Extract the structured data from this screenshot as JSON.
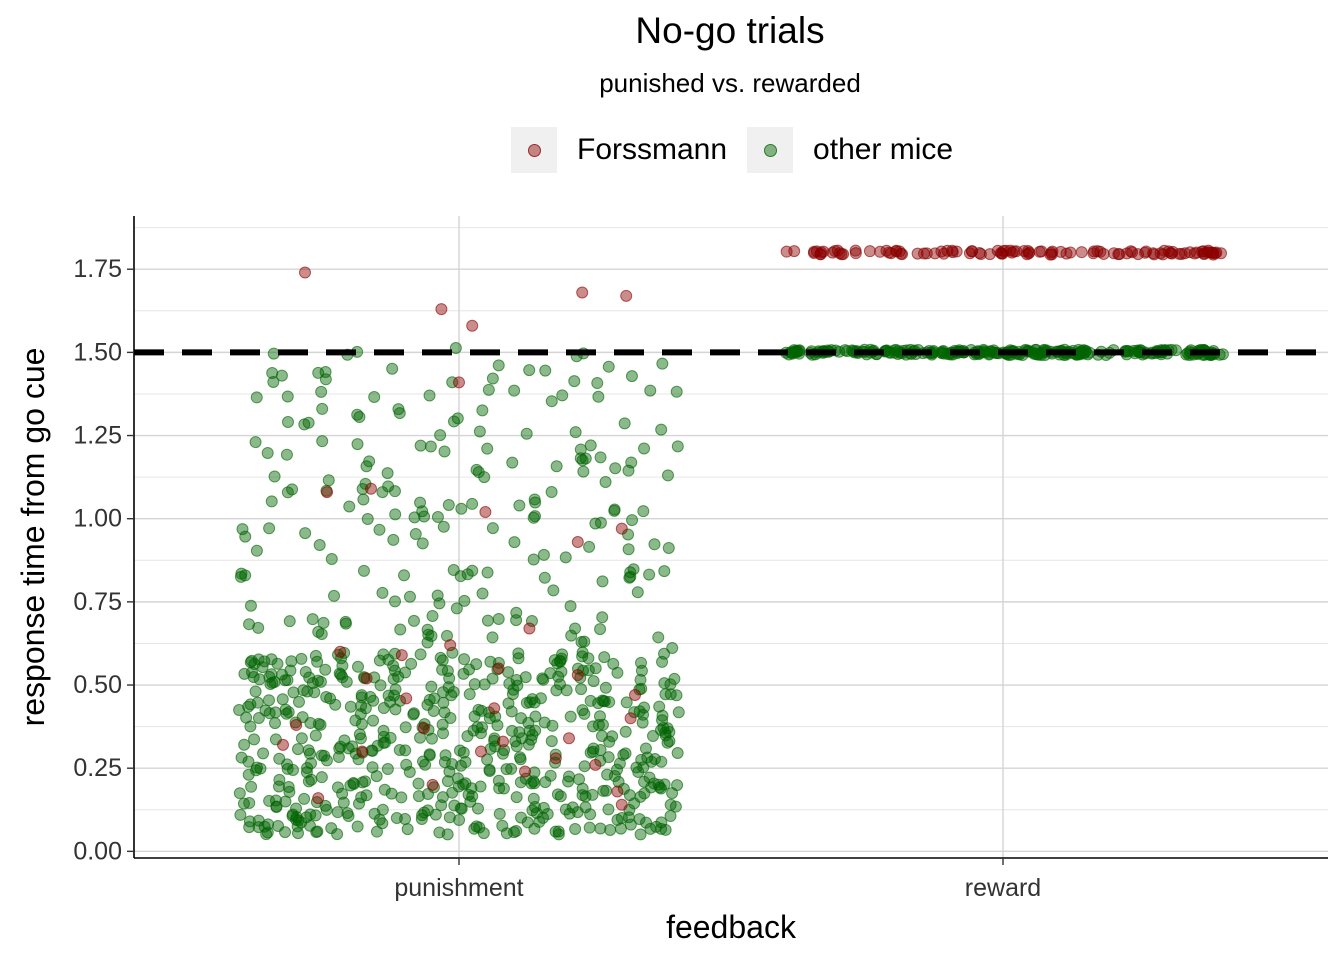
{
  "chart_data": {
    "type": "scatter",
    "title": "No-go trials",
    "subtitle": "punished vs. rewarded",
    "xlabel": "feedback",
    "ylabel": "response time from go cue",
    "categories": [
      "punishment",
      "reward"
    ],
    "ylim": [
      -0.02,
      1.91
    ],
    "yticks": [
      "0.00",
      "0.25",
      "0.50",
      "0.75",
      "1.00",
      "1.25",
      "1.50",
      "1.75"
    ],
    "reference_line": {
      "y": 1.5,
      "style": "dashed",
      "color": "#000000"
    },
    "grid": true,
    "legend_position": "top",
    "series": [
      {
        "name": "Forssmann",
        "color": "#8b0000",
        "points": [
          {
            "x": "punishment",
            "y": 1.74,
            "jitter": -0.35
          },
          {
            "x": "punishment",
            "y": 1.63,
            "jitter": -0.04
          },
          {
            "x": "punishment",
            "y": 1.58,
            "jitter": 0.03
          },
          {
            "x": "punishment",
            "y": 1.68,
            "jitter": 0.28
          },
          {
            "x": "punishment",
            "y": 1.67,
            "jitter": 0.38
          },
          {
            "x": "punishment",
            "y": 1.41,
            "jitter": 0.0
          },
          {
            "x": "punishment",
            "y": 1.08,
            "jitter": -0.3
          },
          {
            "x": "punishment",
            "y": 1.09,
            "jitter": -0.2
          },
          {
            "x": "punishment",
            "y": 1.02,
            "jitter": 0.06
          },
          {
            "x": "punishment",
            "y": 0.97,
            "jitter": 0.37
          },
          {
            "x": "punishment",
            "y": 0.93,
            "jitter": 0.27
          },
          {
            "x": "punishment",
            "y": 0.67,
            "jitter": 0.16
          },
          {
            "x": "punishment",
            "y": 0.62,
            "jitter": -0.02
          },
          {
            "x": "punishment",
            "y": 0.6,
            "jitter": -0.27
          },
          {
            "x": "punishment",
            "y": 0.59,
            "jitter": -0.13
          },
          {
            "x": "punishment",
            "y": 0.55,
            "jitter": 0.09
          },
          {
            "x": "punishment",
            "y": 0.53,
            "jitter": 0.27
          },
          {
            "x": "punishment",
            "y": 0.47,
            "jitter": 0.4
          },
          {
            "x": "punishment",
            "y": 0.46,
            "jitter": -0.12
          },
          {
            "x": "punishment",
            "y": 0.43,
            "jitter": 0.08
          },
          {
            "x": "punishment",
            "y": 0.4,
            "jitter": 0.39
          },
          {
            "x": "punishment",
            "y": 0.38,
            "jitter": -0.37
          },
          {
            "x": "punishment",
            "y": 0.37,
            "jitter": -0.08
          },
          {
            "x": "punishment",
            "y": 0.34,
            "jitter": 0.25
          },
          {
            "x": "punishment",
            "y": 0.32,
            "jitter": -0.4
          },
          {
            "x": "punishment",
            "y": 0.3,
            "jitter": 0.05
          },
          {
            "x": "punishment",
            "y": 0.3,
            "jitter": -0.22
          },
          {
            "x": "punishment",
            "y": 0.26,
            "jitter": 0.31
          },
          {
            "x": "punishment",
            "y": 0.24,
            "jitter": 0.15
          },
          {
            "x": "punishment",
            "y": 0.2,
            "jitter": -0.06
          },
          {
            "x": "punishment",
            "y": 0.18,
            "jitter": 0.36
          },
          {
            "x": "punishment",
            "y": 0.16,
            "jitter": -0.32
          },
          {
            "x": "punishment",
            "y": 0.14,
            "jitter": 0.37
          },
          {
            "x": "punishment",
            "y": 0.33,
            "jitter": 0.1
          },
          {
            "x": "punishment",
            "y": 0.52,
            "jitter": -0.21
          },
          {
            "x": "punishment",
            "y": 0.28,
            "jitter": 0.22
          }
        ],
        "band_reward": {
          "x": "reward",
          "y": 1.8,
          "spread": 0.006,
          "count": 110
        }
      },
      {
        "name": "other mice",
        "color": "#006400",
        "punishment_cloud": {
          "x": "punishment",
          "count": 760,
          "y_range": [
            0.05,
            1.52
          ],
          "dense_range": [
            0.05,
            0.6
          ]
        },
        "band_reward": {
          "x": "reward",
          "y": 1.5,
          "spread": 0.008,
          "count": 260
        }
      }
    ]
  }
}
